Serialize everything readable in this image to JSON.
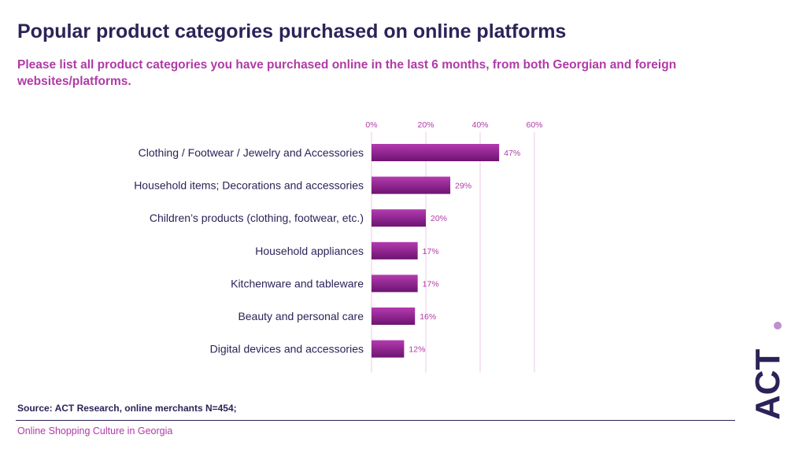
{
  "header": {
    "title": "Popular product categories purchased on online platforms",
    "subtitle": "Please list all product categories you have purchased online in the last 6 months, from both Georgian and foreign websites/platforms."
  },
  "footer": {
    "source": "Source: ACT Research, online merchants N=454;",
    "report": "Online Shopping Culture in Georgia"
  },
  "logo": {
    "text": "ACT",
    "accent": "#c08fd0"
  },
  "colors": {
    "bar_top": "#b43bb0",
    "bar_bottom": "#6d1371",
    "text_dark": "#2b2358",
    "accent": "#b03aa6",
    "grid": "#efc9ea"
  },
  "chart_data": {
    "type": "bar",
    "orientation": "horizontal",
    "categories": [
      "Clothing / Footwear / Jewelry and Accessories",
      "Household items; Decorations and accessories",
      "Children’s products (clothing, footwear, etc.)",
      "Household appliances",
      "Kitchenware and tableware",
      "Beauty and personal care",
      "Digital devices and accessories"
    ],
    "values": [
      47,
      29,
      20,
      17,
      17,
      16,
      12
    ],
    "value_labels": [
      "47%",
      "29%",
      "20%",
      "17%",
      "17%",
      "16%",
      "12%"
    ],
    "xlim": [
      0,
      60
    ],
    "ticks": [
      0,
      20,
      40,
      60
    ],
    "tick_labels": [
      "0%",
      "20%",
      "40%",
      "60%"
    ],
    "axis_position": "top",
    "grid": true
  }
}
